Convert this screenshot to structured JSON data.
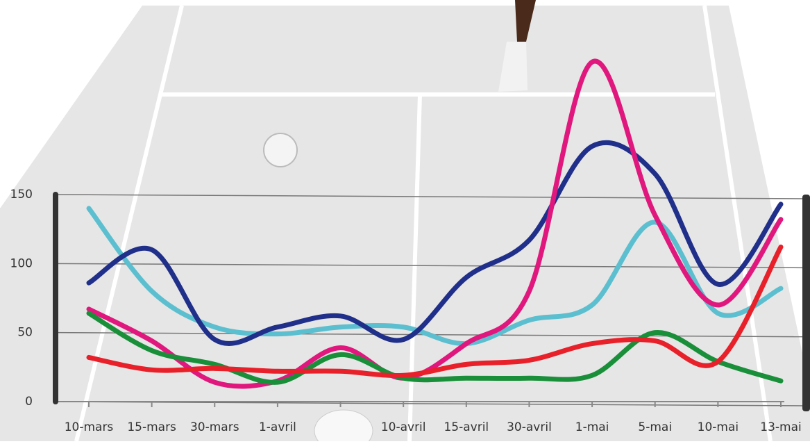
{
  "chart_data": {
    "type": "line",
    "categories": [
      "10-mars",
      "15-mars",
      "30-mars",
      "1-avril",
      null,
      "10-avril",
      "15-avril",
      "30-avril",
      "1-mai",
      "5-mai",
      "10-mai",
      "13-mai"
    ],
    "series": [
      {
        "color": "#5bbfd0",
        "values": [
          140,
          80,
          54,
          49,
          54,
          54,
          42,
          59,
          70,
          130,
          64,
          82
        ]
      },
      {
        "color": "#1f2f8a",
        "values": [
          86,
          110,
          45,
          54,
          62,
          45,
          90,
          117,
          185,
          165,
          85,
          143
        ]
      },
      {
        "color": "#e0187e",
        "values": [
          67,
          44,
          14,
          15,
          39,
          17,
          42,
          80,
          246,
          135,
          70,
          132
        ]
      },
      {
        "color": "#1a8f3a",
        "values": [
          64,
          37,
          27,
          14,
          34,
          17,
          17,
          17,
          19,
          50,
          29,
          15
        ]
      },
      {
        "color": "#e8202a",
        "values": [
          32,
          23,
          24,
          22,
          22,
          19,
          27,
          30,
          42,
          44,
          29,
          112
        ]
      }
    ],
    "ylim": [
      0,
      150
    ],
    "yticks": [
      0,
      50,
      100,
      150
    ],
    "grid": true
  }
}
